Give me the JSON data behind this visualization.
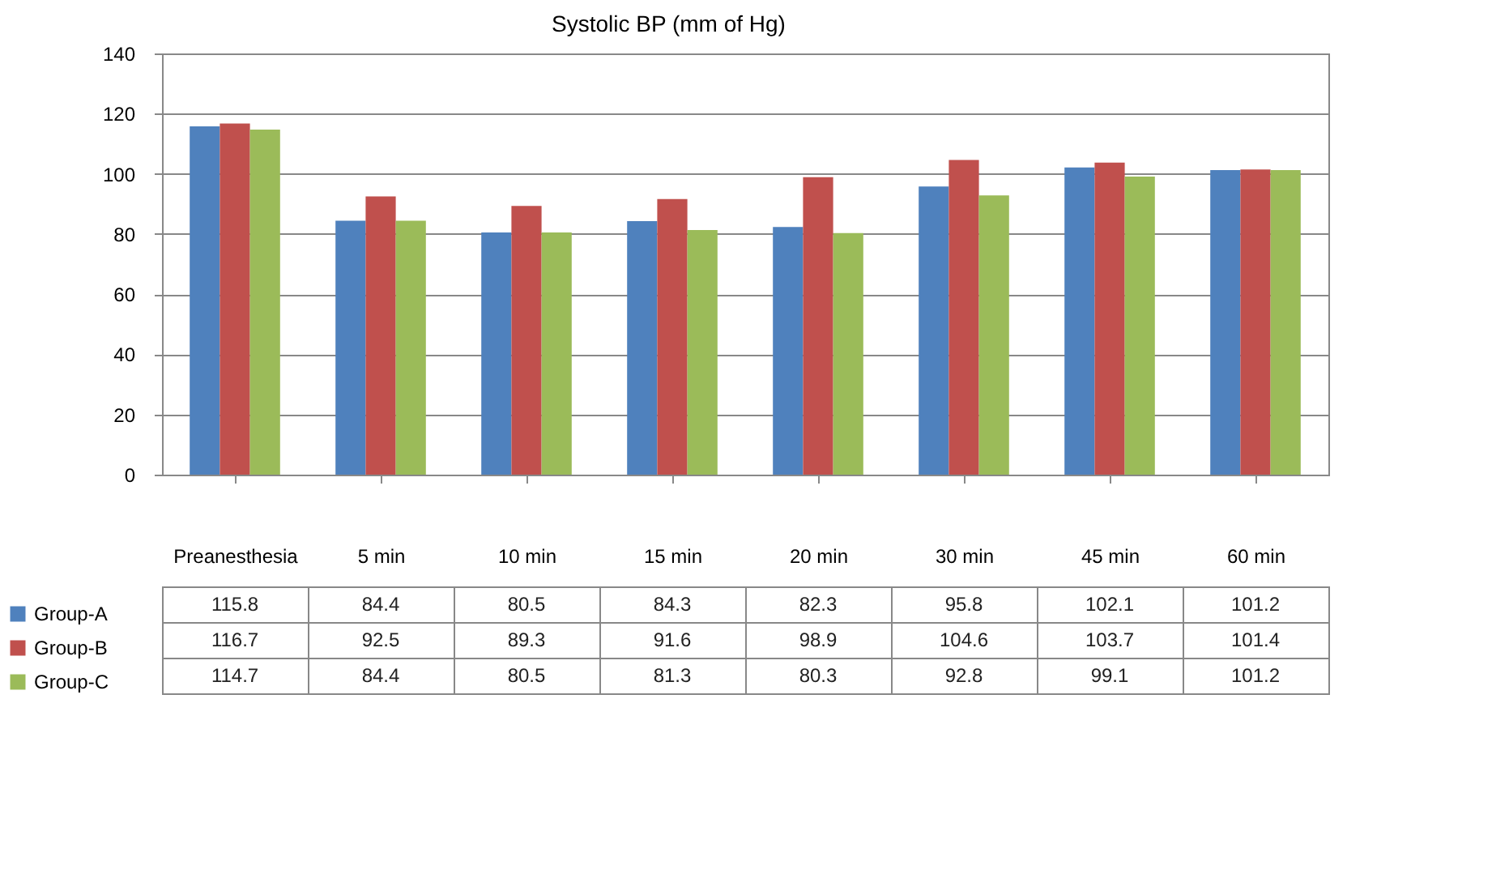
{
  "chart_data": {
    "type": "bar",
    "title": "Systolic BP (mm of Hg)",
    "categories": [
      "Preanesthesia",
      "5 min",
      "10 min",
      "15 min",
      "20 min",
      "30 min",
      "45 min",
      "60 min"
    ],
    "series": [
      {
        "name": "Group-A",
        "color": "#4f81bd",
        "values": [
          115.8,
          84.4,
          80.5,
          84.3,
          82.3,
          95.8,
          102.1,
          101.2
        ]
      },
      {
        "name": "Group-B",
        "color": "#c0504d",
        "values": [
          116.7,
          92.5,
          89.3,
          91.6,
          98.9,
          104.6,
          103.7,
          101.4
        ]
      },
      {
        "name": "Group-C",
        "color": "#9bbb59",
        "values": [
          114.7,
          84.4,
          80.5,
          81.3,
          80.3,
          92.8,
          99.1,
          101.2
        ]
      }
    ],
    "ylim": [
      0,
      140
    ],
    "yticks": [
      0,
      20,
      40,
      60,
      80,
      100,
      120,
      140
    ],
    "grid": "y",
    "legend": "bottom left",
    "data_labels": true
  }
}
